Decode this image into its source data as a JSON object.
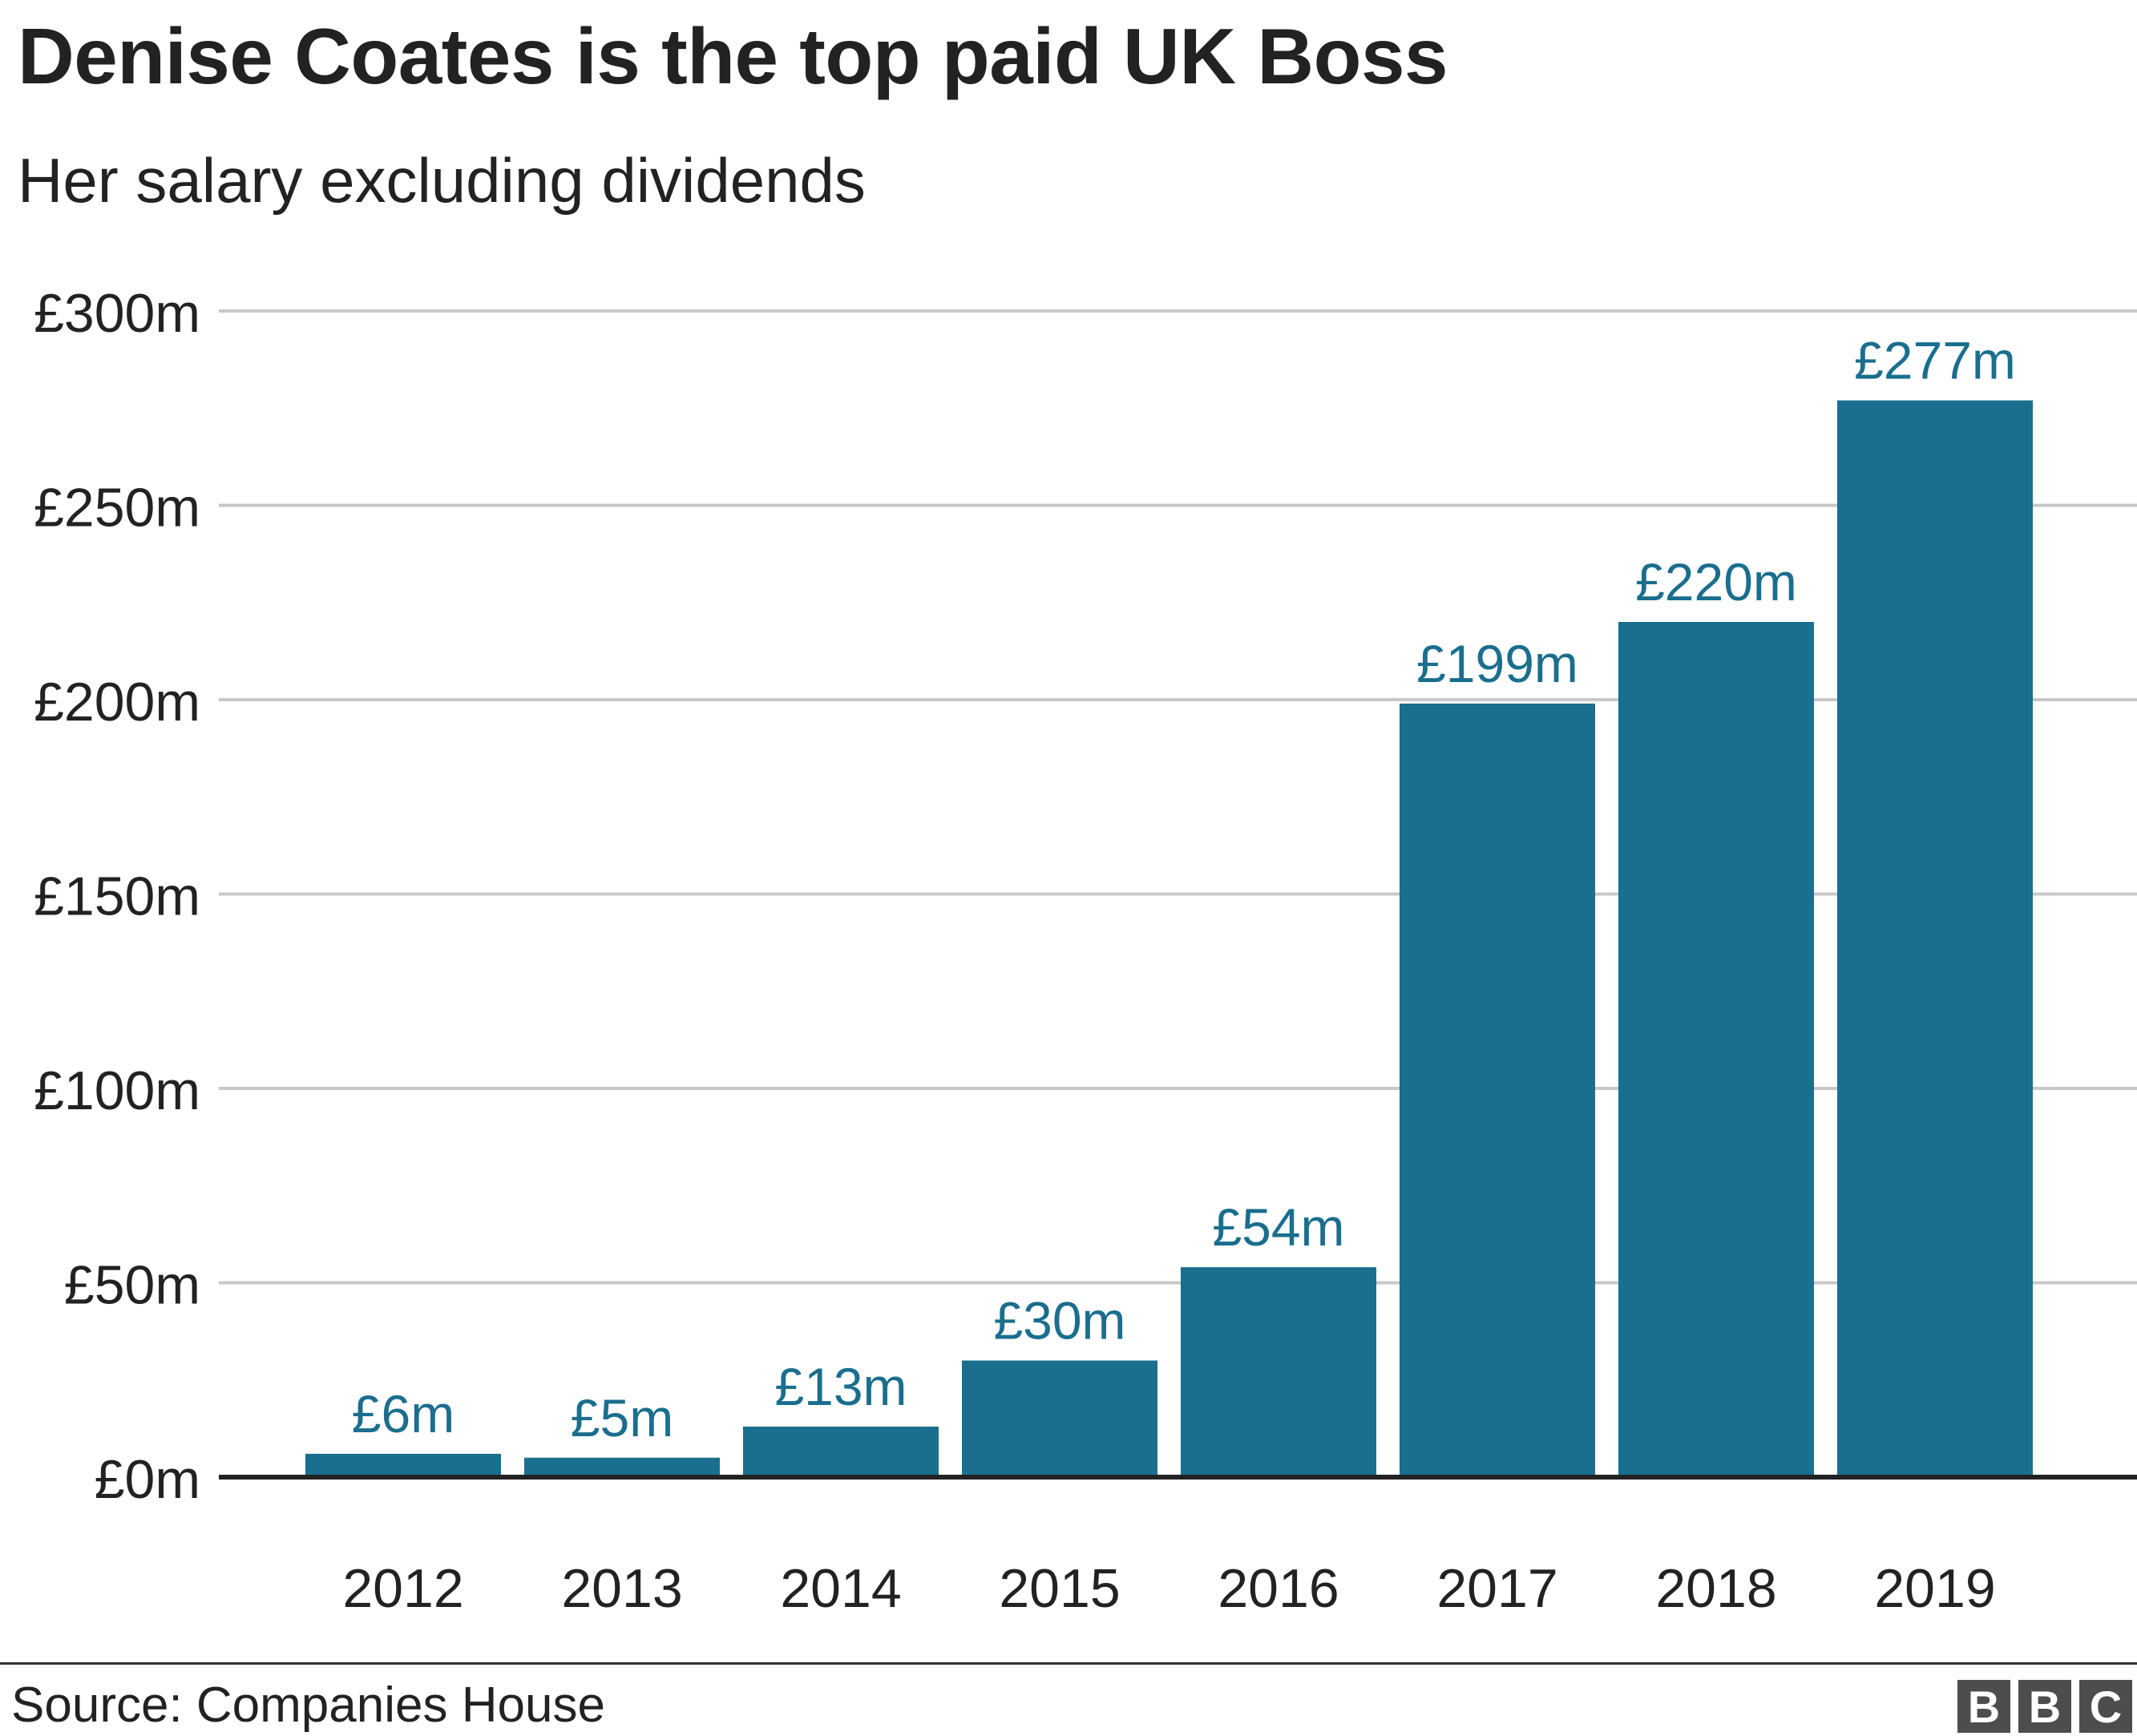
{
  "header": {
    "title": "Denise Coates is the top paid UK Boss",
    "subtitle": "Her salary excluding dividends"
  },
  "footer": {
    "source": "Source: Companies House",
    "logo_letters": [
      "B",
      "B",
      "C"
    ]
  },
  "colors": {
    "bar": "#1a6e8e",
    "label": "#1a6e8e",
    "grid": "#c8c8c8",
    "axis": "#222222",
    "text": "#222222"
  },
  "chart_data": {
    "type": "bar",
    "title": "Denise Coates is the top paid UK Boss",
    "subtitle": "Her salary excluding dividends",
    "xlabel": "",
    "ylabel": "",
    "categories": [
      "2012",
      "2013",
      "2014",
      "2015",
      "2016",
      "2017",
      "2018",
      "2019"
    ],
    "values": [
      6,
      5,
      13,
      30,
      54,
      199,
      220,
      277
    ],
    "data_labels": [
      "£6m",
      "£5m",
      "£13m",
      "£30m",
      "£54m",
      "£199m",
      "£220m",
      "£277m"
    ],
    "ylim": [
      0,
      300
    ],
    "yticks": [
      0,
      50,
      100,
      150,
      200,
      250,
      300
    ],
    "ytick_labels": [
      "£0m",
      "£50m",
      "£100m",
      "£150m",
      "£200m",
      "£250m",
      "£300m"
    ],
    "grid": true,
    "legend": "none"
  }
}
